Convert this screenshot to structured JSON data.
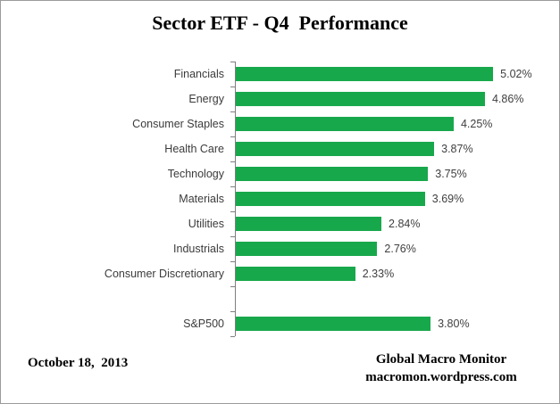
{
  "title": "Sector ETF - Q4  Performance",
  "chart_data": {
    "type": "bar",
    "orientation": "horizontal",
    "title": "Sector ETF - Q4  Performance",
    "categories": [
      "Financials",
      "Energy",
      "Consumer Staples",
      "Health Care",
      "Technology",
      "Materials",
      "Utilities",
      "Industrials",
      "Consumer Discretionary",
      "",
      "S&P500"
    ],
    "values": [
      5.02,
      4.86,
      4.25,
      3.87,
      3.75,
      3.69,
      2.84,
      2.76,
      2.33,
      null,
      3.8
    ],
    "value_labels": [
      "5.02%",
      "4.86%",
      "4.25%",
      "3.87%",
      "3.75%",
      "3.69%",
      "2.84%",
      "2.76%",
      "2.33%",
      null,
      "3.80%"
    ],
    "value_suffix": "%",
    "bar_color": "#18A84C",
    "axis_color": "#7f7f7f",
    "grid": false,
    "legend": false,
    "xlabel": "",
    "ylabel": ""
  },
  "footer": {
    "date": "October 18,  2013",
    "source_line1": "Global Macro Monitor",
    "source_line2": "macromon.wordpress.com"
  }
}
